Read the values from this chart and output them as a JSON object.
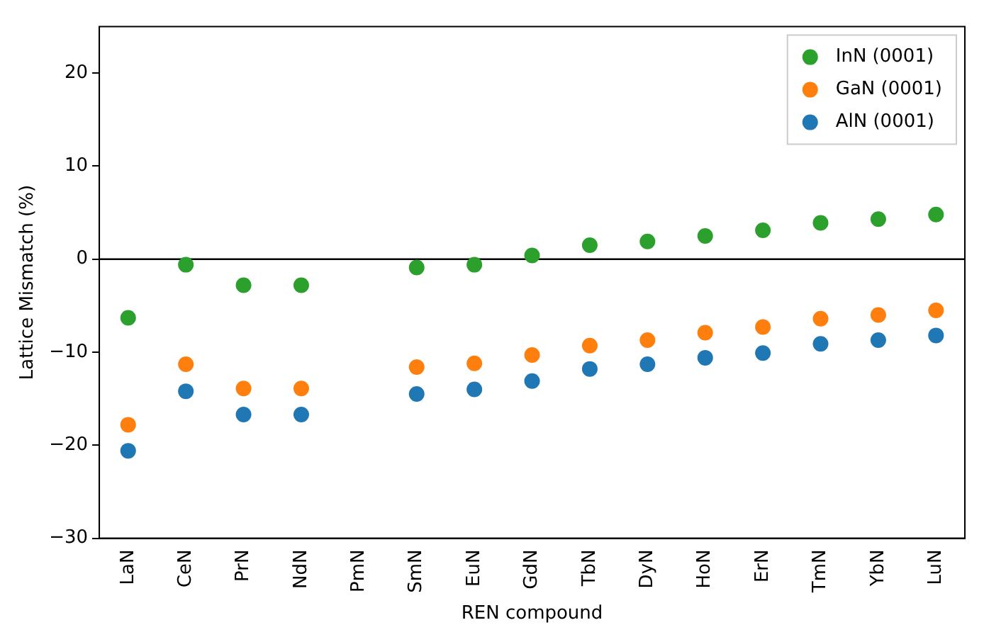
{
  "chart_data": {
    "type": "scatter",
    "xlabel": "REN compound",
    "ylabel": "Lattice Mismatch (%)",
    "categories": [
      "LaN",
      "CeN",
      "PrN",
      "NdN",
      "PmN",
      "SmN",
      "EuN",
      "GdN",
      "TbN",
      "DyN",
      "HoN",
      "ErN",
      "TmN",
      "YbN",
      "LuN"
    ],
    "series": [
      {
        "name": "InN (0001)",
        "color": "#2ca02c",
        "values": [
          -6.3,
          -0.6,
          -2.8,
          -2.8,
          null,
          -0.9,
          -0.6,
          0.4,
          1.5,
          1.9,
          2.5,
          3.1,
          3.9,
          4.3,
          4.8
        ]
      },
      {
        "name": "GaN (0001)",
        "color": "#ff7f0e",
        "values": [
          -17.8,
          -11.3,
          -13.9,
          -13.9,
          null,
          -11.6,
          -11.2,
          -10.3,
          -9.3,
          -8.7,
          -7.9,
          -7.3,
          -6.4,
          -6.0,
          -5.5
        ]
      },
      {
        "name": "AlN (0001)",
        "color": "#1f77b4",
        "values": [
          -20.6,
          -14.2,
          -16.7,
          -16.7,
          null,
          -14.5,
          -14.0,
          -13.1,
          -11.8,
          -11.3,
          -10.6,
          -10.1,
          -9.1,
          -8.7,
          -8.2
        ]
      }
    ],
    "ylim": [
      -30,
      25
    ],
    "yticks": [
      {
        "value": -30,
        "label": "−30"
      },
      {
        "value": -20,
        "label": "−20"
      },
      {
        "value": -10,
        "label": "−10"
      },
      0,
      10,
      20
    ],
    "ref_lines": [
      {
        "axis": "y",
        "value": 0,
        "color": "#000000"
      }
    ],
    "marker": "circle",
    "legend": "top right",
    "grid": false
  }
}
